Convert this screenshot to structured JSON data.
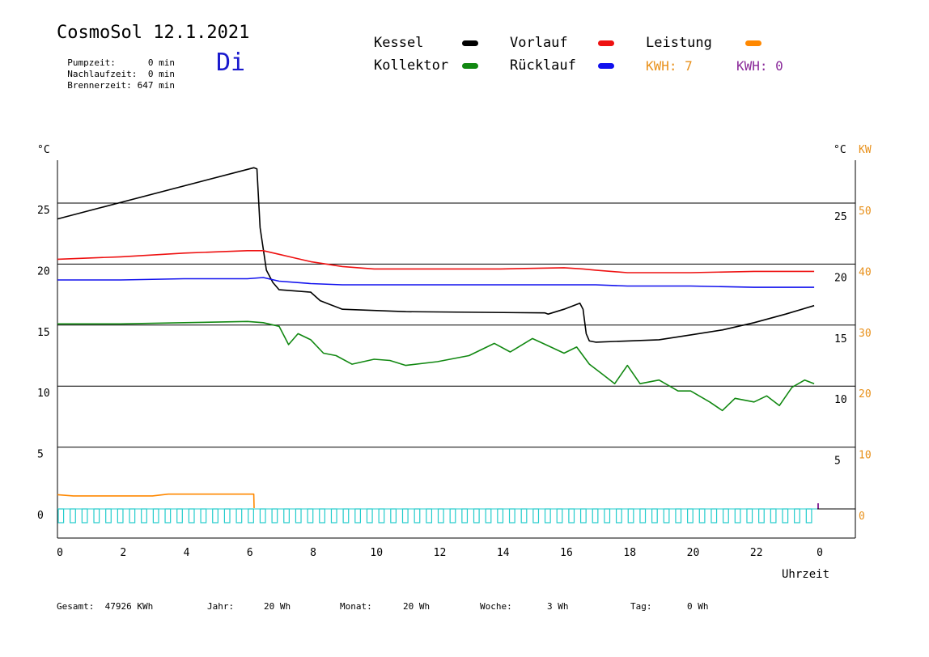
{
  "header": {
    "title": "CosmoSol 12.1.2021",
    "day": "Di",
    "stats": [
      {
        "label": "Pumpzeit:",
        "value": "0 min"
      },
      {
        "label": "Nachlaufzeit:",
        "value": "0 min"
      },
      {
        "label": "Brennerzeit:",
        "value": "647 min"
      }
    ]
  },
  "legend": {
    "items": [
      {
        "label": "Kessel",
        "color": "#000000"
      },
      {
        "label": "Vorlauf",
        "color": "#ee1111"
      },
      {
        "label": "Leistung",
        "color": "#ff8800"
      },
      {
        "label": "Kollektor",
        "color": "#118811"
      },
      {
        "label": "Rücklauf",
        "color": "#1111ee"
      }
    ],
    "kwh": [
      {
        "text": "KWH: 7",
        "color": "#e8901a"
      },
      {
        "text": "KWH: 0",
        "color": "#8a2a9a"
      }
    ]
  },
  "axes": {
    "left_unit": "°C",
    "right_unit": "°C",
    "right_unit2": "KW",
    "xlabel": "Uhrzeit"
  },
  "footer": {
    "items": [
      {
        "label": "Gesamt:",
        "value": "47926 KWh"
      },
      {
        "label": "Jahr:",
        "value": "20 Wh"
      },
      {
        "label": "Monat:",
        "value": "20 Wh"
      },
      {
        "label": "Woche:",
        "value": "3 Wh"
      },
      {
        "label": "Tag:",
        "value": "0 Wh"
      }
    ]
  },
  "chart_data": {
    "type": "line",
    "x_ticks": [
      "0",
      "2",
      "4",
      "6",
      "8",
      "10",
      "12",
      "14",
      "16",
      "18",
      "20",
      "22",
      "0"
    ],
    "xlim": [
      0,
      24
    ],
    "y_left": {
      "ticks": [
        "0",
        "5",
        "10",
        "15",
        "20",
        "25"
      ],
      "ylim": [
        -1.7,
        29
      ]
    },
    "y_right_temp": {
      "ticks": [
        "5",
        "10",
        "15",
        "20",
        "25"
      ]
    },
    "y_right_kw": {
      "ticks": [
        "0",
        "10",
        "20",
        "30",
        "40",
        "50"
      ],
      "ylim": [
        -3.4,
        58
      ]
    },
    "grid": true,
    "series": [
      {
        "name": "Kessel",
        "color": "#000000",
        "x": [
          0,
          6.2,
          6.3,
          6.4,
          6.6,
          6.8,
          7.0,
          7.5,
          8.0,
          8.3,
          8.6,
          9.0,
          11.0,
          15.4,
          15.5,
          16.0,
          16.4,
          16.5,
          16.6,
          16.7,
          16.8,
          17.0,
          18.0,
          19.0,
          20.0,
          21.0,
          22.0,
          23.0,
          23.9
        ],
        "y": [
          23.7,
          27.9,
          27.8,
          23.0,
          19.5,
          18.5,
          17.9,
          17.8,
          17.7,
          17.0,
          16.7,
          16.3,
          16.1,
          16.0,
          15.9,
          16.3,
          16.7,
          16.8,
          16.3,
          14.3,
          13.7,
          13.6,
          13.7,
          13.8,
          14.2,
          14.6,
          15.2,
          15.9,
          16.6
        ]
      },
      {
        "name": "Vorlauf",
        "color": "#ee1111",
        "x": [
          0,
          2,
          4,
          5,
          6,
          6.5,
          7.0,
          7.5,
          8.0,
          8.5,
          9.0,
          10.0,
          12.0,
          14.0,
          16.0,
          16.6,
          17.0,
          18.0,
          20.0,
          22.0,
          23.9
        ],
        "y": [
          20.4,
          20.6,
          20.9,
          21.0,
          21.1,
          21.1,
          20.8,
          20.5,
          20.2,
          20.0,
          19.8,
          19.6,
          19.6,
          19.6,
          19.7,
          19.6,
          19.5,
          19.3,
          19.3,
          19.4,
          19.4
        ]
      },
      {
        "name": "Rücklauf",
        "color": "#1111ee",
        "x": [
          0,
          2,
          4,
          6,
          6.5,
          7.0,
          8.0,
          9.0,
          12.0,
          16.0,
          17.0,
          18.0,
          20.0,
          22.0,
          23.9
        ],
        "y": [
          18.7,
          18.7,
          18.8,
          18.8,
          18.9,
          18.6,
          18.4,
          18.3,
          18.3,
          18.3,
          18.3,
          18.2,
          18.2,
          18.1,
          18.1
        ]
      },
      {
        "name": "Kollektor",
        "color": "#118811",
        "x": [
          0,
          2,
          4,
          6,
          6.5,
          7.0,
          7.3,
          7.6,
          8.0,
          8.4,
          8.8,
          9.3,
          10.0,
          10.5,
          11.0,
          12.0,
          13.0,
          13.8,
          14.3,
          15.0,
          15.5,
          16.0,
          16.4,
          16.8,
          17.2,
          17.6,
          18.0,
          18.4,
          19.0,
          19.6,
          20.0,
          20.6,
          21.0,
          21.4,
          22.0,
          22.4,
          22.8,
          23.2,
          23.6,
          23.9
        ],
        "y": [
          15.1,
          15.1,
          15.2,
          15.3,
          15.2,
          14.9,
          13.4,
          14.3,
          13.8,
          12.7,
          12.5,
          11.8,
          12.2,
          12.1,
          11.7,
          12.0,
          12.5,
          13.5,
          12.8,
          13.9,
          13.3,
          12.7,
          13.2,
          11.8,
          11.0,
          10.2,
          11.7,
          10.2,
          10.5,
          9.6,
          9.6,
          8.7,
          8.0,
          9.0,
          8.7,
          9.2,
          8.4,
          9.9,
          10.5,
          10.2
        ]
      },
      {
        "name": "Leistung",
        "color": "#ff8800",
        "axis": "right_kw",
        "x": [
          0,
          0.5,
          1.5,
          2.0,
          3.0,
          3.5,
          4.5,
          5.0,
          6.2,
          6.21
        ],
        "y": [
          2.2,
          2.0,
          2.0,
          2.0,
          2.0,
          2.3,
          2.3,
          2.3,
          2.3,
          0
        ]
      }
    ],
    "pump_indicator": {
      "color": "#22cccc",
      "pulse_count": 64
    }
  }
}
